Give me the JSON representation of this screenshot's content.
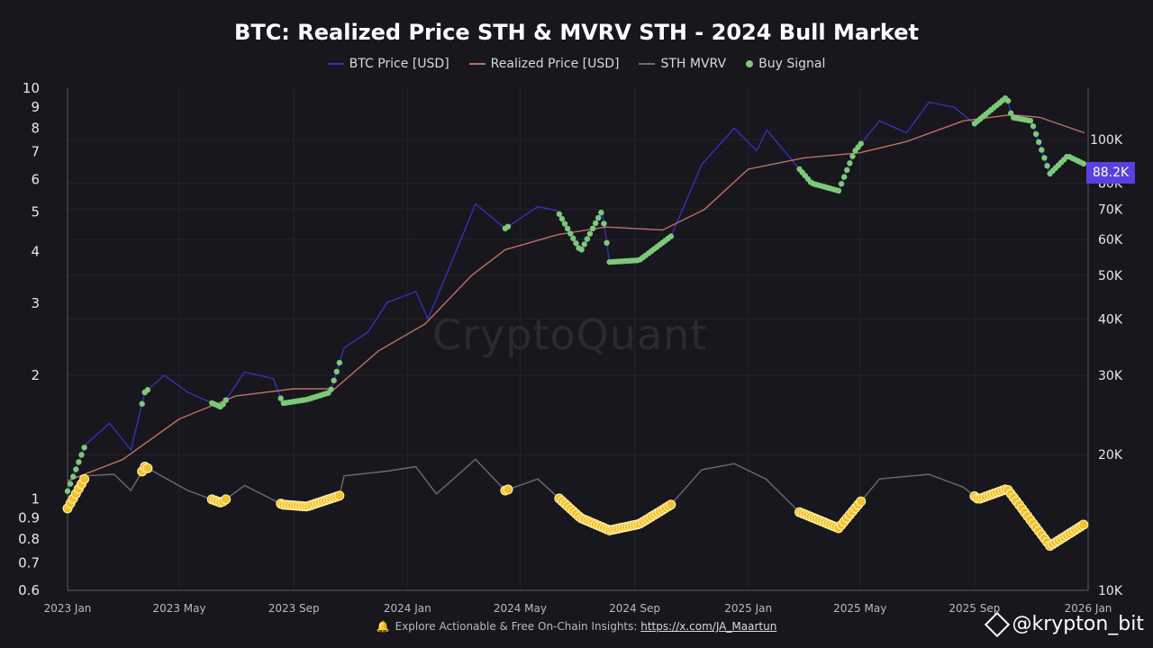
{
  "header": {
    "title": "BTC: Realized Price STH & MVRV STH - 2024 Bull Market"
  },
  "legend": [
    {
      "label": "BTC Price [USD]",
      "color": "#3b2fb8",
      "kind": "line"
    },
    {
      "label": "Realized Price [USD]",
      "color": "#c07062",
      "kind": "line"
    },
    {
      "label": "STH MVRV",
      "color": "#6b6b72",
      "kind": "line"
    },
    {
      "label": "Buy Signal",
      "color": "#7cc97a",
      "kind": "dot"
    }
  ],
  "watermark": "CryptoQuant",
  "current_price_tag": "88.2K",
  "footer": {
    "text": "Explore Actionable & Free On-Chain Insights: ",
    "link": "https://x.com/JA_Maartun"
  },
  "badge": "@krypton_bit",
  "chart_data": {
    "type": "line",
    "title": "BTC: Realized Price STH & MVRV STH - 2024 Bull Market",
    "x_ticks": [
      "2023 Jan",
      "2023 May",
      "2023 Sep",
      "2024 Jan",
      "2024 May",
      "2024 Sep",
      "2025 Jan",
      "2025 May",
      "2025 Sep",
      "2026 Jan"
    ],
    "x_range": [
      "2023-01-01",
      "2026-01-01"
    ],
    "left_axis": {
      "scale": "log",
      "range": [
        0.6,
        10
      ],
      "ticks": [
        "0.6",
        "0.7",
        "0.8",
        "0.9",
        "1",
        "2",
        "3",
        "4",
        "5",
        "6",
        "7",
        "8",
        "9",
        "10"
      ]
    },
    "right_axis": {
      "scale": "log",
      "range": [
        10000,
        130000
      ],
      "ticks": [
        "10K",
        "20K",
        "30K",
        "40K",
        "50K",
        "60K",
        "70K",
        "80K",
        "100K"
      ]
    },
    "grid": true,
    "legend_position": "top",
    "series": [
      {
        "name": "BTC Price [USD]",
        "axis": "right",
        "color": "#3b2fb8",
        "points": [
          [
            "2023-01-01",
            16600
          ],
          [
            "2023-01-20",
            21000
          ],
          [
            "2023-02-15",
            23500
          ],
          [
            "2023-03-10",
            20500
          ],
          [
            "2023-03-25",
            27500
          ],
          [
            "2023-04-15",
            30000
          ],
          [
            "2023-05-10",
            27500
          ],
          [
            "2023-06-15",
            25500
          ],
          [
            "2023-07-10",
            30500
          ],
          [
            "2023-08-10",
            29500
          ],
          [
            "2023-08-20",
            26000
          ],
          [
            "2023-09-15",
            26500
          ],
          [
            "2023-10-10",
            27500
          ],
          [
            "2023-10-25",
            34500
          ],
          [
            "2023-11-20",
            37500
          ],
          [
            "2023-12-10",
            43500
          ],
          [
            "2024-01-10",
            46000
          ],
          [
            "2024-01-23",
            40000
          ],
          [
            "2024-02-15",
            52000
          ],
          [
            "2024-03-14",
            72000
          ],
          [
            "2024-04-15",
            63500
          ],
          [
            "2024-05-20",
            71000
          ],
          [
            "2024-06-10",
            69500
          ],
          [
            "2024-07-05",
            56500
          ],
          [
            "2024-07-28",
            69500
          ],
          [
            "2024-08-05",
            53500
          ],
          [
            "2024-09-06",
            54000
          ],
          [
            "2024-10-10",
            61000
          ],
          [
            "2024-11-12",
            88000
          ],
          [
            "2024-12-17",
            106000
          ],
          [
            "2025-01-10",
            94500
          ],
          [
            "2025-01-21",
            105000
          ],
          [
            "2025-02-25",
            86000
          ],
          [
            "2025-03-10",
            80000
          ],
          [
            "2025-04-08",
            77000
          ],
          [
            "2025-04-25",
            94000
          ],
          [
            "2025-05-22",
            110000
          ],
          [
            "2025-06-20",
            103500
          ],
          [
            "2025-07-14",
            121000
          ],
          [
            "2025-08-10",
            118000
          ],
          [
            "2025-09-01",
            108500
          ],
          [
            "2025-10-06",
            124500
          ],
          [
            "2025-10-11",
            112000
          ],
          [
            "2025-11-01",
            110000
          ],
          [
            "2025-11-21",
            84000
          ],
          [
            "2025-12-10",
            92000
          ],
          [
            "2025-12-28",
            88200
          ]
        ]
      },
      {
        "name": "Realized Price [USD]",
        "axis": "right",
        "color": "#c07062",
        "points": [
          [
            "2023-01-01",
            17500
          ],
          [
            "2023-03-01",
            19500
          ],
          [
            "2023-05-01",
            24000
          ],
          [
            "2023-07-01",
            27000
          ],
          [
            "2023-09-01",
            28000
          ],
          [
            "2023-10-15",
            28000
          ],
          [
            "2023-12-01",
            34000
          ],
          [
            "2024-01-20",
            39000
          ],
          [
            "2024-03-10",
            50000
          ],
          [
            "2024-04-15",
            57000
          ],
          [
            "2024-06-10",
            61500
          ],
          [
            "2024-08-01",
            64000
          ],
          [
            "2024-10-01",
            63000
          ],
          [
            "2024-11-15",
            70000
          ],
          [
            "2025-01-01",
            86000
          ],
          [
            "2025-03-01",
            91000
          ],
          [
            "2025-05-01",
            93500
          ],
          [
            "2025-06-20",
            99000
          ],
          [
            "2025-08-20",
            110000
          ],
          [
            "2025-10-10",
            113500
          ],
          [
            "2025-11-10",
            112000
          ],
          [
            "2025-12-28",
            103500
          ]
        ]
      },
      {
        "name": "STH MVRV",
        "axis": "left",
        "color": "#6b6b72",
        "points": [
          [
            "2023-01-01",
            0.95
          ],
          [
            "2023-01-21",
            1.14
          ],
          [
            "2023-02-20",
            1.15
          ],
          [
            "2023-03-10",
            1.05
          ],
          [
            "2023-03-25",
            1.2
          ],
          [
            "2023-05-10",
            1.05
          ],
          [
            "2023-06-15",
            0.98
          ],
          [
            "2023-07-10",
            1.08
          ],
          [
            "2023-08-20",
            0.97
          ],
          [
            "2023-09-15",
            0.96
          ],
          [
            "2023-10-20",
            1.02
          ],
          [
            "2023-10-25",
            1.14
          ],
          [
            "2023-12-10",
            1.17
          ],
          [
            "2024-01-10",
            1.2
          ],
          [
            "2024-02-01",
            1.03
          ],
          [
            "2024-03-14",
            1.25
          ],
          [
            "2024-04-15",
            1.05
          ],
          [
            "2024-05-20",
            1.12
          ],
          [
            "2024-07-05",
            0.9
          ],
          [
            "2024-08-05",
            0.84
          ],
          [
            "2024-09-06",
            0.87
          ],
          [
            "2024-10-10",
            0.97
          ],
          [
            "2024-11-12",
            1.18
          ],
          [
            "2024-12-17",
            1.22
          ],
          [
            "2025-01-20",
            1.12
          ],
          [
            "2025-02-25",
            0.93
          ],
          [
            "2025-04-08",
            0.85
          ],
          [
            "2025-05-22",
            1.12
          ],
          [
            "2025-07-14",
            1.15
          ],
          [
            "2025-08-20",
            1.07
          ],
          [
            "2025-09-05",
            1.0
          ],
          [
            "2025-10-06",
            1.06
          ],
          [
            "2025-11-21",
            0.77
          ],
          [
            "2025-12-28",
            0.87
          ]
        ]
      }
    ],
    "buy_signal_dates": [
      [
        "2023-01-01",
        "2023-01-20"
      ],
      [
        "2023-03-22",
        "2023-03-30"
      ],
      [
        "2023-06-05",
        "2023-06-20"
      ],
      [
        "2023-08-18",
        "2023-10-20"
      ],
      [
        "2024-04-15",
        "2024-04-20"
      ],
      [
        "2024-06-12",
        "2024-10-12"
      ],
      [
        "2025-02-25",
        "2025-05-02"
      ],
      [
        "2025-09-01",
        "2025-12-28"
      ]
    ]
  }
}
